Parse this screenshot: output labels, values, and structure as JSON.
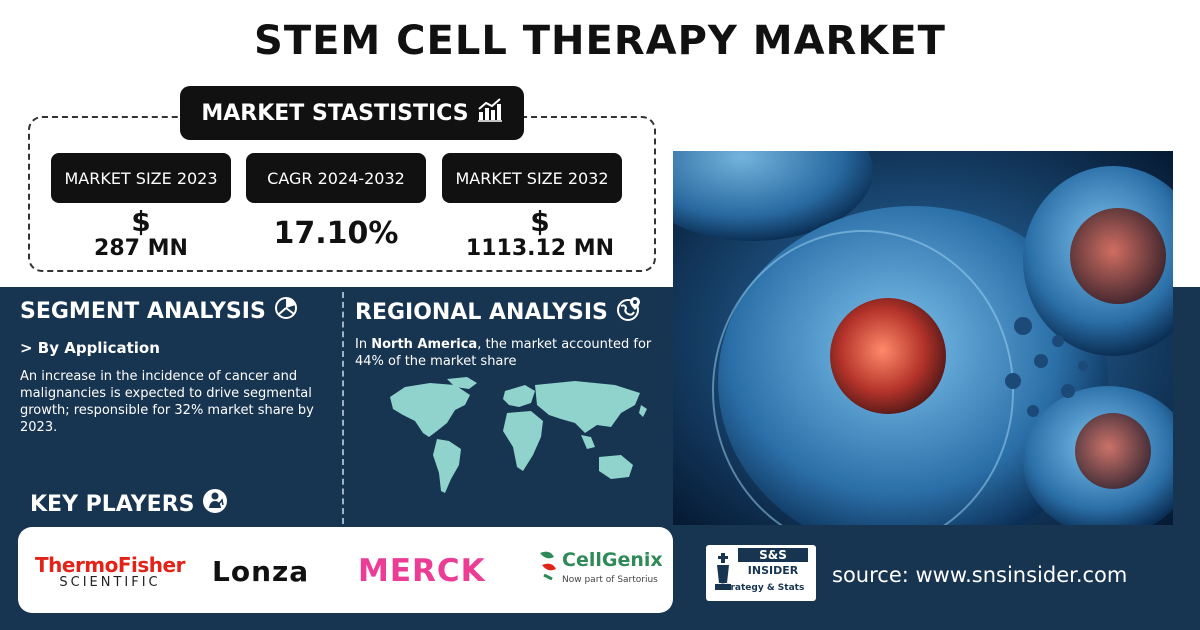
{
  "title": "STEM CELL THERAPY MARKET",
  "stats": {
    "header": "MARKET STASTISTICS",
    "header_icon": "growth-chart-icon",
    "items": [
      {
        "label": "MARKET SIZE 2023",
        "symbol": "$",
        "value": "287 MN"
      },
      {
        "label": "CAGR 2024-2032",
        "symbol": "",
        "value": "17.10%"
      },
      {
        "label": "MARKET SIZE 2032",
        "symbol": "$",
        "value": "1113.12 MN"
      }
    ]
  },
  "segment": {
    "title": "SEGMENT ANALYSIS",
    "icon": "pie-chart-icon",
    "subtitle": "> By Application",
    "text": "An increase in the incidence of cancer and malignancies is expected to drive segmental growth; responsible for 32% market share by 2023."
  },
  "regional": {
    "title": "REGIONAL ANALYSIS",
    "icon": "globe-pin-icon",
    "text_prefix": "In ",
    "text_bold": "North America",
    "text_suffix": ", the market accounted for 44% of the market share",
    "map_color": "#8fd3cc"
  },
  "key_players": {
    "title": "KEY PLAYERS",
    "icon": "person-icon",
    "logos": {
      "thermo_line1": "ThermoFisher",
      "thermo_line2": "SCIENTIFIC",
      "lonza": "Lonza",
      "merck": "MERCK",
      "cellgenix": "CellGenix",
      "cellgenix_sub": "Now part of Sartorius"
    }
  },
  "branding": {
    "logo_line1": "S&S",
    "logo_line2": "INSIDER",
    "logo_line3": "Strategy & Stats",
    "source": "source: www.snsinsider.com"
  },
  "colors": {
    "navy": "#173451",
    "black": "#111111",
    "thermo_red": "#e2231a",
    "merck_pink": "#eb3c96",
    "cellgenix_green": "#2e8b57"
  }
}
